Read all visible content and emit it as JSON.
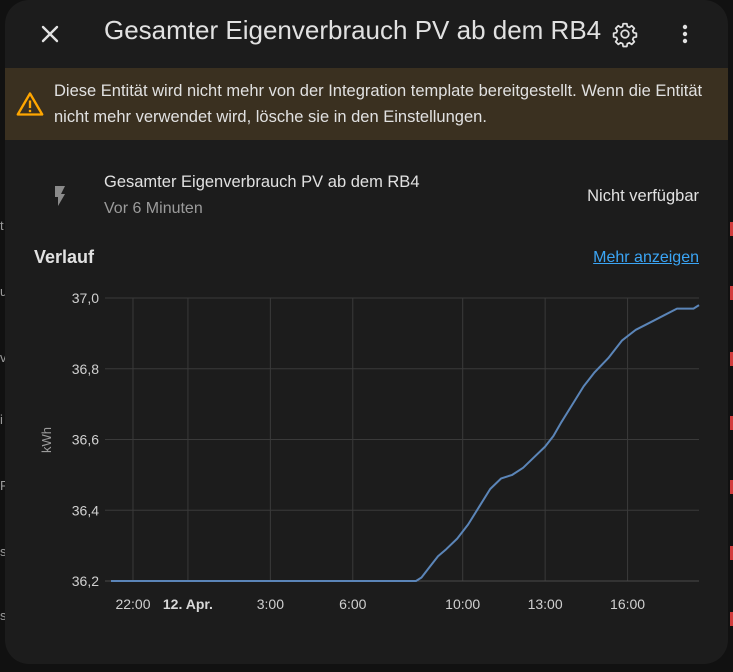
{
  "dialog": {
    "title": "Gesamter Eigenverbrauch PV ab dem RB4",
    "warning": "Diese Entität wird nicht mehr von der Integration template bereitgestellt. Wenn die Entität nicht mehr verwendet wird, lösche sie in den Einstellungen.",
    "entity": {
      "icon": "flash-icon",
      "name": "Gesamter Eigenverbrauch PV ab dem RB4",
      "last_changed": "Vor 6 Minuten",
      "state": "Nicht verfügbar"
    },
    "history": {
      "title": "Verlauf",
      "more_link": "Mehr anzeigen"
    }
  },
  "background_edge": {
    "left_fragments": [
      "t",
      "u",
      "v",
      "i",
      "R",
      "s",
      "s"
    ]
  },
  "colors": {
    "dialog_bg": "#1c1c1c",
    "warning_bg": "#3a3020",
    "warning_icon": "#ffa600",
    "link": "#3ba5f5",
    "line": "#5b85b8"
  },
  "chart_data": {
    "type": "line",
    "ylabel": "kWh",
    "ylim": [
      36.2,
      37.0
    ],
    "yticks": [
      "37,0",
      "36,8",
      "36,6",
      "36,4",
      "36,2"
    ],
    "ytick_values": [
      37.0,
      36.8,
      36.6,
      36.4,
      36.2
    ],
    "xticks": [
      {
        "label": "22:00",
        "hour": 0,
        "bold": false
      },
      {
        "label": "12. Apr.",
        "hour": 2,
        "bold": true
      },
      {
        "label": "3:00",
        "hour": 5,
        "bold": false
      },
      {
        "label": "6:00",
        "hour": 8,
        "bold": false
      },
      {
        "label": "10:00",
        "hour": 12,
        "bold": false
      },
      {
        "label": "13:00",
        "hour": 15,
        "bold": false
      },
      {
        "label": "16:00",
        "hour": 18,
        "bold": false
      }
    ],
    "x_unit": "hours since 22:00",
    "xlim": [
      -0.8,
      20.6
    ],
    "series": [
      {
        "name": "",
        "points": [
          [
            -0.8,
            36.2
          ],
          [
            10.3,
            36.2
          ],
          [
            10.5,
            36.21
          ],
          [
            10.8,
            36.24
          ],
          [
            11.1,
            36.27
          ],
          [
            11.4,
            36.29
          ],
          [
            11.8,
            36.32
          ],
          [
            12.2,
            36.36
          ],
          [
            12.6,
            36.41
          ],
          [
            13.0,
            36.46
          ],
          [
            13.4,
            36.49
          ],
          [
            13.8,
            36.5
          ],
          [
            14.2,
            36.52
          ],
          [
            14.6,
            36.55
          ],
          [
            15.0,
            36.58
          ],
          [
            15.3,
            36.61
          ],
          [
            15.6,
            36.65
          ],
          [
            16.0,
            36.7
          ],
          [
            16.4,
            36.75
          ],
          [
            16.8,
            36.79
          ],
          [
            17.3,
            36.83
          ],
          [
            17.8,
            36.88
          ],
          [
            18.3,
            36.91
          ],
          [
            18.8,
            36.93
          ],
          [
            19.3,
            36.95
          ],
          [
            19.8,
            36.97
          ],
          [
            20.4,
            36.97
          ],
          [
            20.6,
            36.98
          ]
        ]
      }
    ]
  }
}
